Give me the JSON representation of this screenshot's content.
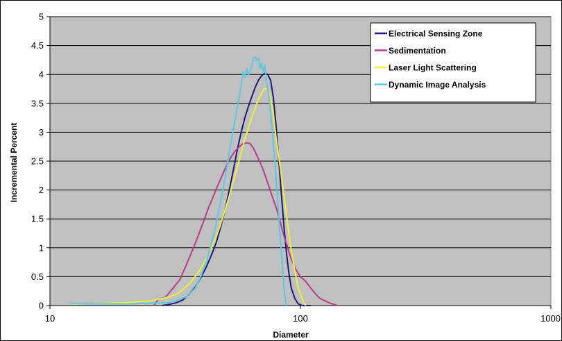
{
  "chart_data": {
    "type": "line",
    "xlabel": "Diameter",
    "ylabel": "Incremental Percent",
    "xscale": "log",
    "xlim": [
      10,
      1000
    ],
    "ylim": [
      0,
      5
    ],
    "xticks": [
      10,
      100,
      1000
    ],
    "xtick_labels": [
      "10",
      "100",
      "1000"
    ],
    "yticks": [
      0,
      0.5,
      1,
      1.5,
      2,
      2.5,
      3,
      3.5,
      4,
      4.5,
      5
    ],
    "ytick_labels": [
      "0",
      "0.5",
      "1",
      "1.5",
      "2",
      "2.5",
      "3",
      "3.5",
      "4",
      "4.5",
      "5"
    ],
    "grid": "horizontal",
    "legend_position": "top-right",
    "colors": {
      "plot_background": "#c0c0c0",
      "grid": "#000000"
    },
    "series": [
      {
        "name": "Electrical Sensing Zone",
        "color": "#1f1a7a",
        "points": [
          [
            28,
            0
          ],
          [
            30,
            0.02
          ],
          [
            32,
            0.05
          ],
          [
            34,
            0.1
          ],
          [
            36,
            0.2
          ],
          [
            38,
            0.32
          ],
          [
            40,
            0.48
          ],
          [
            42,
            0.66
          ],
          [
            44,
            0.86
          ],
          [
            46,
            1.08
          ],
          [
            48,
            1.35
          ],
          [
            50,
            1.65
          ],
          [
            52,
            2.0
          ],
          [
            54,
            2.35
          ],
          [
            56,
            2.7
          ],
          [
            58,
            3.0
          ],
          [
            60,
            3.25
          ],
          [
            62,
            3.45
          ],
          [
            64,
            3.62
          ],
          [
            66,
            3.78
          ],
          [
            68,
            3.9
          ],
          [
            70,
            3.98
          ],
          [
            72,
            4.02
          ],
          [
            74,
            4.0
          ],
          [
            76,
            3.9
          ],
          [
            78,
            3.6
          ],
          [
            80,
            3.1
          ],
          [
            82,
            2.5
          ],
          [
            84,
            1.9
          ],
          [
            86,
            1.35
          ],
          [
            88,
            0.9
          ],
          [
            90,
            0.55
          ],
          [
            92,
            0.3
          ],
          [
            95,
            0.12
          ],
          [
            98,
            0.03
          ],
          [
            102,
            0
          ],
          [
            110,
            0
          ]
        ]
      },
      {
        "name": "Sedimentation",
        "color": "#b83a8e",
        "points": [
          [
            26,
            0
          ],
          [
            27,
            0.1
          ],
          [
            29,
            0.15
          ],
          [
            31,
            0.3
          ],
          [
            33,
            0.45
          ],
          [
            35,
            0.7
          ],
          [
            37,
            0.95
          ],
          [
            39,
            1.2
          ],
          [
            41,
            1.45
          ],
          [
            43,
            1.7
          ],
          [
            45,
            1.9
          ],
          [
            47,
            2.1
          ],
          [
            49,
            2.28
          ],
          [
            51,
            2.45
          ],
          [
            53,
            2.58
          ],
          [
            55,
            2.68
          ],
          [
            57,
            2.75
          ],
          [
            59,
            2.8
          ],
          [
            61,
            2.82
          ],
          [
            63,
            2.8
          ],
          [
            65,
            2.72
          ],
          [
            67,
            2.6
          ],
          [
            69,
            2.48
          ],
          [
            71,
            2.35
          ],
          [
            73,
            2.2
          ],
          [
            75,
            2.05
          ],
          [
            77,
            1.9
          ],
          [
            80,
            1.7
          ],
          [
            83,
            1.45
          ],
          [
            86,
            1.2
          ],
          [
            89,
            1.0
          ],
          [
            92,
            0.8
          ],
          [
            96,
            0.62
          ],
          [
            100,
            0.5
          ],
          [
            105,
            0.42
          ],
          [
            110,
            0.3
          ],
          [
            115,
            0.2
          ],
          [
            120,
            0.12
          ],
          [
            130,
            0.05
          ],
          [
            140,
            0
          ]
        ]
      },
      {
        "name": "Laser Light Scattering",
        "color": "#f0f03a",
        "points": [
          [
            12,
            0.02
          ],
          [
            20,
            0.05
          ],
          [
            25,
            0.08
          ],
          [
            28,
            0.12
          ],
          [
            30,
            0.15
          ],
          [
            32,
            0.2
          ],
          [
            34,
            0.28
          ],
          [
            36,
            0.38
          ],
          [
            38,
            0.5
          ],
          [
            40,
            0.64
          ],
          [
            42,
            0.8
          ],
          [
            44,
            0.98
          ],
          [
            46,
            1.18
          ],
          [
            48,
            1.4
          ],
          [
            50,
            1.65
          ],
          [
            52,
            1.9
          ],
          [
            54,
            2.15
          ],
          [
            56,
            2.4
          ],
          [
            58,
            2.65
          ],
          [
            60,
            2.88
          ],
          [
            62,
            3.08
          ],
          [
            64,
            3.26
          ],
          [
            66,
            3.42
          ],
          [
            68,
            3.57
          ],
          [
            70,
            3.68
          ],
          [
            72,
            3.76
          ],
          [
            74,
            3.74
          ],
          [
            76,
            3.6
          ],
          [
            78,
            3.3
          ],
          [
            80,
            2.9
          ],
          [
            83,
            2.4
          ],
          [
            86,
            1.9
          ],
          [
            89,
            1.4
          ],
          [
            92,
            0.95
          ],
          [
            95,
            0.6
          ],
          [
            98,
            0.3
          ],
          [
            102,
            0.1
          ],
          [
            105,
            0
          ]
        ]
      },
      {
        "name": "Dynamic Image Analysis",
        "color": "#5bc8e0",
        "points": [
          [
            12,
            0.03
          ],
          [
            20,
            0.03
          ],
          [
            30,
            0.05
          ],
          [
            35,
            0.15
          ],
          [
            38,
            0.3
          ],
          [
            40,
            0.5
          ],
          [
            42,
            0.75
          ],
          [
            44,
            1.05
          ],
          [
            46,
            1.4
          ],
          [
            48,
            1.8
          ],
          [
            50,
            2.2
          ],
          [
            52,
            2.65
          ],
          [
            54,
            3.05
          ],
          [
            56,
            3.45
          ],
          [
            58,
            3.8
          ],
          [
            59,
            4.05
          ],
          [
            60,
            3.95
          ],
          [
            61,
            4.1
          ],
          [
            62,
            3.98
          ],
          [
            64,
            4.15
          ],
          [
            65,
            4.28
          ],
          [
            66,
            4.3
          ],
          [
            67,
            4.25
          ],
          [
            68,
            4.28
          ],
          [
            69,
            4.1
          ],
          [
            70,
            4.2
          ],
          [
            71,
            4.05
          ],
          [
            72,
            4.15
          ],
          [
            73,
            3.9
          ],
          [
            75,
            3.6
          ],
          [
            77,
            3.1
          ],
          [
            79,
            2.5
          ],
          [
            81,
            1.85
          ],
          [
            83,
            1.2
          ],
          [
            85,
            0.6
          ],
          [
            86,
            0.3
          ],
          [
            87,
            0.1
          ],
          [
            88,
            0
          ]
        ]
      }
    ]
  }
}
